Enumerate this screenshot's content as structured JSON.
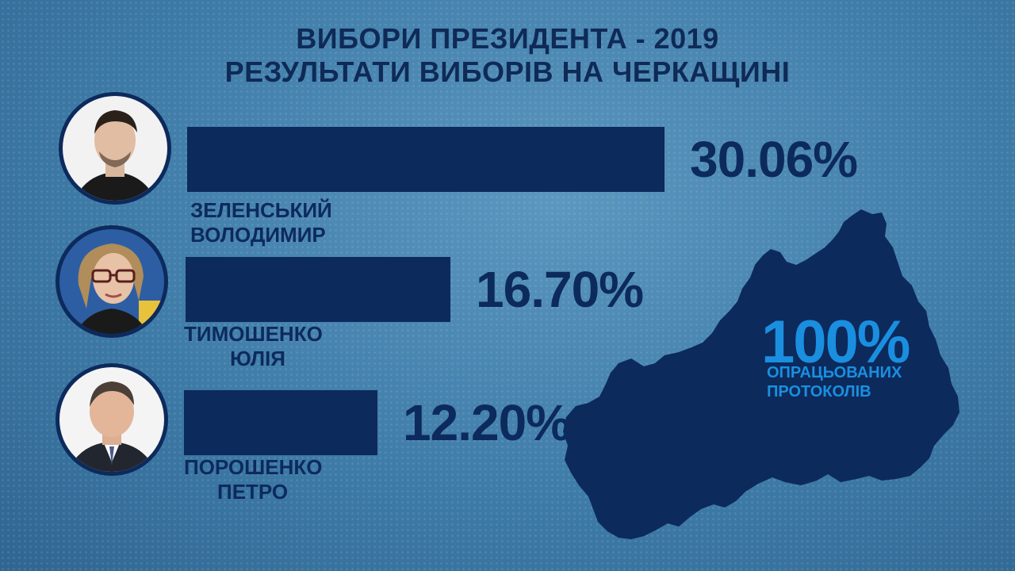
{
  "header": {
    "line1": "ВИБОРИ ПРЕЗИДЕНТА - 2019",
    "line2": "РЕЗУЛЬТАТИ ВИБОРІВ НА ЧЕРКАЩИНІ"
  },
  "chart_data": {
    "type": "bar",
    "orientation": "horizontal",
    "categories": [
      "ЗЕЛЕНСЬКИЙ ВОЛОДИМИР",
      "ТИМОШЕНКО ЮЛІЯ",
      "ПОРОШЕНКО ПЕТРО"
    ],
    "values": [
      30.06,
      16.7,
      12.2
    ],
    "value_labels": [
      "30.06%",
      "16.70%",
      "12.20%"
    ],
    "title": "ВИБОРИ ПРЕЗИДЕНТА - 2019",
    "subtitle": "РЕЗУЛЬТАТИ ВИБОРІВ НА ЧЕРКАЩИНІ",
    "grid": false,
    "legend": "none"
  },
  "candidates": [
    {
      "surname": "ЗЕЛЕНСЬКИЙ",
      "first_name": "ВОЛОДИМИР",
      "percent": "30.06%",
      "photo_icon": "portrait-man-black-shirt"
    },
    {
      "surname": "ТИМОШЕНКО",
      "first_name": "ЮЛІЯ",
      "percent": "16.70%",
      "photo_icon": "portrait-woman-glasses"
    },
    {
      "surname": "ПОРОШЕНКО",
      "first_name": "ПЕТРО",
      "percent": "12.20%",
      "photo_icon": "portrait-man-suit"
    }
  ],
  "map": {
    "region_icon": "cherkasy-oblast-map-icon",
    "processed_percent": "100%",
    "processed_line1": "ОПРАЦЬОВАНИХ",
    "processed_line2": "ПРОТОКОЛІВ"
  },
  "colors": {
    "background": "#3f7ca8",
    "bar": "#0d2a5c",
    "title": "#0f2a57",
    "map_text": "#1a8fe0"
  }
}
